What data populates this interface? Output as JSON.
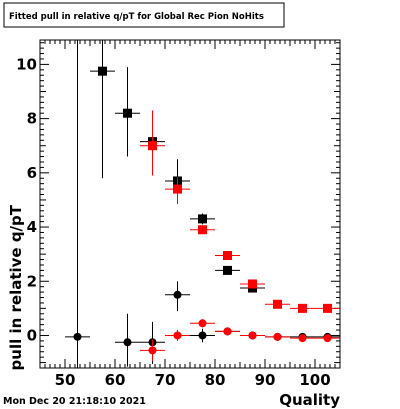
{
  "chart_data": {
    "type": "scatter",
    "title": "Fitted pull in relative q/pT  for Global Rec Pion NoHits",
    "xlabel": "Quality",
    "ylabel": "pull in relative q/pT",
    "xlim": [
      45,
      105
    ],
    "ylim": [
      -1.2,
      10.9
    ],
    "x_ticks": [
      50,
      60,
      70,
      80,
      90,
      100
    ],
    "y_ticks": [
      0,
      2,
      4,
      6,
      8,
      10
    ],
    "grid": false,
    "legend": "none",
    "timestamp": "Mon Dec 20 21:18:10 2021",
    "series": [
      {
        "marker": "square",
        "color": "#000000",
        "points": [
          {
            "x": 57.5,
            "y": 9.75,
            "xerr": 2.5,
            "yerr_low": 3.95,
            "yerr_high": 1.15
          },
          {
            "x": 62.5,
            "y": 8.2,
            "xerr": 2.5,
            "yerr_low": 1.6,
            "yerr_high": 1.7
          },
          {
            "x": 67.5,
            "y": 7.15,
            "xerr": 2.5,
            "yerr_low": 0.35,
            "yerr_high": 0.35
          },
          {
            "x": 72.5,
            "y": 5.7,
            "xerr": 2.5,
            "yerr_low": 0.25,
            "yerr_high": 0.8
          },
          {
            "x": 77.5,
            "y": 4.3,
            "xerr": 2.5,
            "yerr_low": 0.2,
            "yerr_high": 0.2
          },
          {
            "x": 82.5,
            "y": 2.4,
            "xerr": 2.5,
            "yerr_low": 0.1,
            "yerr_high": 0.1
          },
          {
            "x": 87.5,
            "y": 1.75,
            "xerr": 2.5,
            "yerr_low": 0.05,
            "yerr_high": 0.05
          }
        ]
      },
      {
        "marker": "square",
        "color": "#ff0000",
        "points": [
          {
            "x": 67.5,
            "y": 7.0,
            "xerr": 2.5,
            "yerr_low": 1.1,
            "yerr_high": 1.3
          },
          {
            "x": 72.5,
            "y": 5.4,
            "xerr": 2.5,
            "yerr_low": 0.55,
            "yerr_high": 0.45
          },
          {
            "x": 77.5,
            "y": 3.9,
            "xerr": 2.5,
            "yerr_low": 0.12,
            "yerr_high": 0.12
          },
          {
            "x": 82.5,
            "y": 2.95,
            "xerr": 2.5,
            "yerr_low": 0.08,
            "yerr_high": 0.08
          },
          {
            "x": 87.5,
            "y": 1.9,
            "xerr": 2.5,
            "yerr_low": 0.05,
            "yerr_high": 0.05
          },
          {
            "x": 92.5,
            "y": 1.15,
            "xerr": 2.5,
            "yerr_low": 0.03,
            "yerr_high": 0.03
          },
          {
            "x": 97.5,
            "y": 1.0,
            "xerr": 2.5,
            "yerr_low": 0.03,
            "yerr_high": 0.03
          },
          {
            "x": 102.5,
            "y": 1.0,
            "xerr": 2.5,
            "yerr_low": 0.03,
            "yerr_high": 0.03
          }
        ]
      },
      {
        "marker": "circle",
        "color": "#000000",
        "points": [
          {
            "x": 52.5,
            "y": -0.05,
            "xerr": 2.5,
            "yerr_low": 1.2,
            "yerr_high": 11.0
          },
          {
            "x": 62.5,
            "y": -0.25,
            "xerr": 2.5,
            "yerr_low": 0.9,
            "yerr_high": 1.05
          },
          {
            "x": 67.5,
            "y": -0.25,
            "xerr": 2.5,
            "yerr_low": 0.8,
            "yerr_high": 0.75
          },
          {
            "x": 72.5,
            "y": 1.5,
            "xerr": 2.5,
            "yerr_low": 0.6,
            "yerr_high": 0.5
          },
          {
            "x": 77.5,
            "y": 0.0,
            "xerr": 2.5,
            "yerr_low": 0.25,
            "yerr_high": 0.25
          },
          {
            "x": 82.5,
            "y": 0.15,
            "xerr": 2.5,
            "yerr_low": 0.06,
            "yerr_high": 0.06
          },
          {
            "x": 87.5,
            "y": 0.0,
            "xerr": 2.5,
            "yerr_low": 0.04,
            "yerr_high": 0.04
          },
          {
            "x": 92.5,
            "y": -0.05,
            "xerr": 2.5,
            "yerr_low": 0.03,
            "yerr_high": 0.03
          },
          {
            "x": 97.5,
            "y": -0.05,
            "xerr": 2.5,
            "yerr_low": 0.03,
            "yerr_high": 0.03
          },
          {
            "x": 102.5,
            "y": -0.05,
            "xerr": 2.5,
            "yerr_low": 0.03,
            "yerr_high": 0.03
          }
        ]
      },
      {
        "marker": "circle",
        "color": "#ff0000",
        "points": [
          {
            "x": 67.5,
            "y": -0.55,
            "xerr": 2.5,
            "yerr_low": 0.4,
            "yerr_high": 0.4
          },
          {
            "x": 72.5,
            "y": 0.0,
            "xerr": 2.5,
            "yerr_low": 0.2,
            "yerr_high": 0.2
          },
          {
            "x": 77.5,
            "y": 0.45,
            "xerr": 2.5,
            "yerr_low": 0.15,
            "yerr_high": 0.15
          },
          {
            "x": 82.5,
            "y": 0.15,
            "xerr": 2.5,
            "yerr_low": 0.06,
            "yerr_high": 0.06
          },
          {
            "x": 87.5,
            "y": 0.0,
            "xerr": 2.5,
            "yerr_low": 0.04,
            "yerr_high": 0.04
          },
          {
            "x": 92.5,
            "y": -0.05,
            "xerr": 2.5,
            "yerr_low": 0.03,
            "yerr_high": 0.03
          },
          {
            "x": 97.5,
            "y": -0.1,
            "xerr": 2.5,
            "yerr_low": 0.03,
            "yerr_high": 0.03
          },
          {
            "x": 102.5,
            "y": -0.1,
            "xerr": 2.5,
            "yerr_low": 0.03,
            "yerr_high": 0.03
          }
        ]
      }
    ]
  }
}
